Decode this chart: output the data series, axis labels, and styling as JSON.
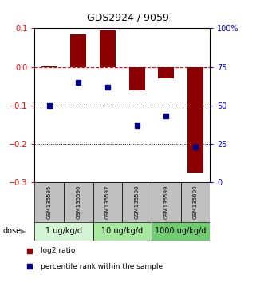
{
  "title": "GDS2924 / 9059",
  "samples": [
    "GSM135595",
    "GSM135596",
    "GSM135597",
    "GSM135598",
    "GSM135599",
    "GSM135600"
  ],
  "log2_ratio": [
    0.002,
    0.085,
    0.095,
    -0.06,
    -0.03,
    -0.275
  ],
  "percentile_rank": [
    50,
    65,
    62,
    37,
    43,
    23
  ],
  "groups": [
    {
      "label": "1 ug/kg/d",
      "indices": [
        0,
        1
      ]
    },
    {
      "label": "10 ug/kg/d",
      "indices": [
        2,
        3
      ]
    },
    {
      "label": "1000 ug/kg/d",
      "indices": [
        4,
        5
      ]
    }
  ],
  "bar_color": "#8b0000",
  "dot_color": "#00008b",
  "ylim_left": [
    -0.3,
    0.1
  ],
  "ylim_right": [
    0,
    100
  ],
  "yticks_left": [
    -0.3,
    -0.2,
    -0.1,
    0.0,
    0.1
  ],
  "yticks_right": [
    0,
    25,
    50,
    75,
    100
  ],
  "ytick_labels_right": [
    "0",
    "25",
    "50",
    "75",
    "100%"
  ],
  "hline_y": 0,
  "dotted_lines": [
    -0.1,
    -0.2
  ],
  "bar_width": 0.55,
  "legend_items": [
    "log2 ratio",
    "percentile rank within the sample"
  ],
  "legend_colors": [
    "#8b0000",
    "#00008b"
  ],
  "sample_box_color": "#c0c0c0",
  "group_colors": [
    "#d4f5d4",
    "#a8e8a0",
    "#70cc70"
  ],
  "title_fontsize": 9,
  "tick_fontsize": 7,
  "sample_fontsize": 5,
  "dose_fontsize": 7,
  "legend_fontsize": 6.5
}
